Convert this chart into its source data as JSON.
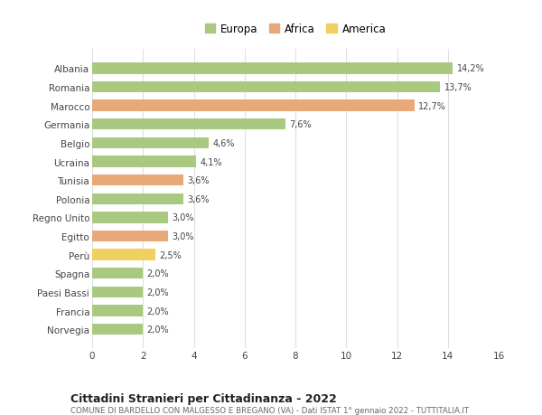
{
  "categories": [
    "Norvegia",
    "Francia",
    "Paesi Bassi",
    "Spagna",
    "Perù",
    "Egitto",
    "Regno Unito",
    "Polonia",
    "Tunisia",
    "Ucraina",
    "Belgio",
    "Germania",
    "Marocco",
    "Romania",
    "Albania"
  ],
  "values": [
    2.0,
    2.0,
    2.0,
    2.0,
    2.5,
    3.0,
    3.0,
    3.6,
    3.6,
    4.1,
    4.6,
    7.6,
    12.7,
    13.7,
    14.2
  ],
  "labels": [
    "2,0%",
    "2,0%",
    "2,0%",
    "2,0%",
    "2,5%",
    "3,0%",
    "3,0%",
    "3,6%",
    "3,6%",
    "4,1%",
    "4,6%",
    "7,6%",
    "12,7%",
    "13,7%",
    "14,2%"
  ],
  "colors": [
    "#a8c97f",
    "#a8c97f",
    "#a8c97f",
    "#a8c97f",
    "#f0d060",
    "#e8a878",
    "#a8c97f",
    "#a8c97f",
    "#e8a878",
    "#a8c97f",
    "#a8c97f",
    "#a8c97f",
    "#e8a878",
    "#a8c97f",
    "#a8c97f"
  ],
  "legend_items": [
    {
      "label": "Europa",
      "color": "#a8c97f"
    },
    {
      "label": "Africa",
      "color": "#e8a878"
    },
    {
      "label": "America",
      "color": "#f0d060"
    }
  ],
  "title": "Cittadini Stranieri per Cittadinanza - 2022",
  "subtitle": "COMUNE DI BARDELLO CON MALGESSO E BREGANO (VA) - Dati ISTAT 1° gennaio 2022 - TUTTITALIA.IT",
  "xlim": [
    0,
    16
  ],
  "xticks": [
    0,
    2,
    4,
    6,
    8,
    10,
    12,
    14,
    16
  ],
  "bg_color": "#ffffff",
  "grid_color": "#e0e0e0",
  "bar_height": 0.6
}
